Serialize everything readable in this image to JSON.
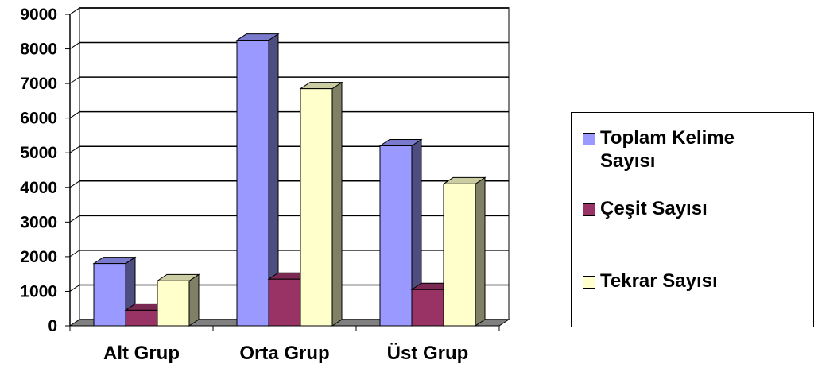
{
  "chart_data": {
    "type": "bar",
    "categories": [
      "Alt Grup",
      "Orta Grup",
      "Üst Grup"
    ],
    "series": [
      {
        "name": "Toplam Kelime Sayısı",
        "values": [
          1800,
          8250,
          5200
        ],
        "color": "#9999ff"
      },
      {
        "name": "Çeşit Sayısı",
        "values": [
          450,
          1350,
          1050
        ],
        "color": "#993366"
      },
      {
        "name": "Tekrar Sayısı",
        "values": [
          1300,
          6850,
          4100
        ],
        "color": "#ffffcc"
      }
    ],
    "ylim": [
      0,
      9000
    ],
    "yticks": [
      "0",
      "1000",
      "2000",
      "3000",
      "4000",
      "5000",
      "6000",
      "7000",
      "8000",
      "9000"
    ],
    "grid": true,
    "legend_position": "right",
    "style": "3d-column"
  }
}
